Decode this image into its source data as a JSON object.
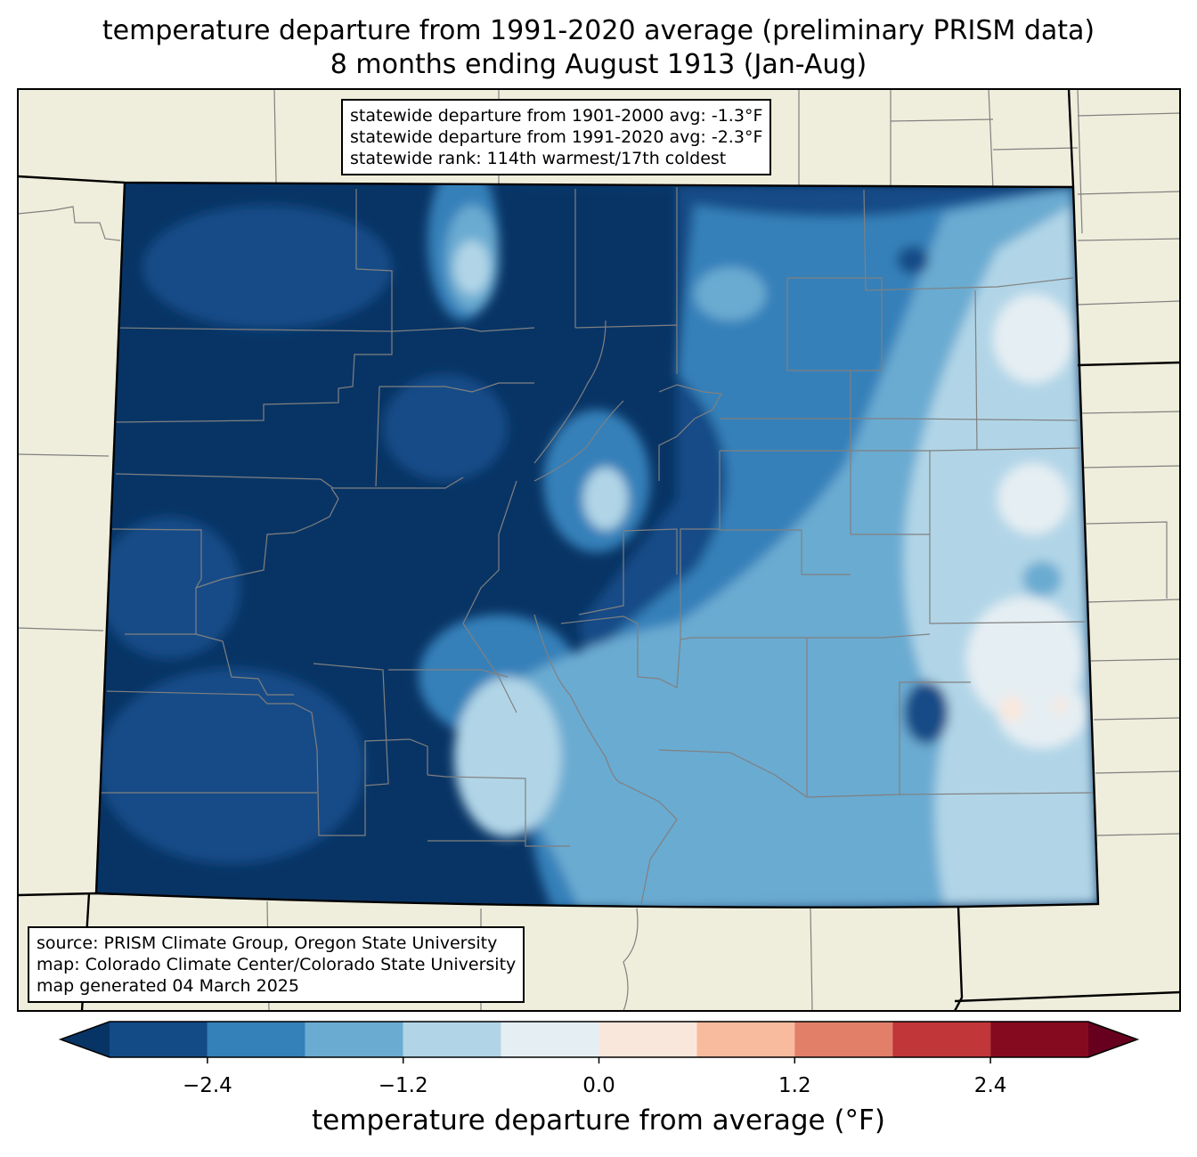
{
  "title_line1": "temperature departure from 1991-2020 average (preliminary PRISM data)",
  "title_line2": "8 months ending August 1913 (Jan-Aug)",
  "stats": {
    "line1": "statewide departure from 1901-2000 avg: -1.3°F",
    "line2": "statewide departure from 1991-2020 avg: -2.3°F",
    "line3": "statewide rank: 114th warmest/17th coldest"
  },
  "source": {
    "line1": "source: PRISM Climate Group, Oregon State University",
    "line2": "map: Colorado Climate Center/Colorado State University",
    "line3": "map generated 04 March 2025"
  },
  "colorbar": {
    "label": "temperature departure from average (°F)",
    "ticks": [
      "−2.4",
      "−1.2",
      "0.0",
      "1.2",
      "2.4"
    ],
    "tick_values": [
      -2.4,
      -1.2,
      0.0,
      1.2,
      2.4
    ],
    "levels": [
      -3.0,
      -2.4,
      -1.8,
      -1.2,
      -0.6,
      0.0,
      0.6,
      1.2,
      1.8,
      2.4,
      3.0
    ],
    "colors": [
      "#134b87",
      "#3480b9",
      "#6aabd1",
      "#b1d5e7",
      "#e5eef3",
      "#fae7dc",
      "#f8bb9e",
      "#e27f68",
      "#c13639",
      "#860a1f"
    ],
    "under_color": "#083465",
    "over_color": "#67001f"
  },
  "map_colors": {
    "land": "#efeedc",
    "outline": "#000000",
    "county": "#808080"
  }
}
